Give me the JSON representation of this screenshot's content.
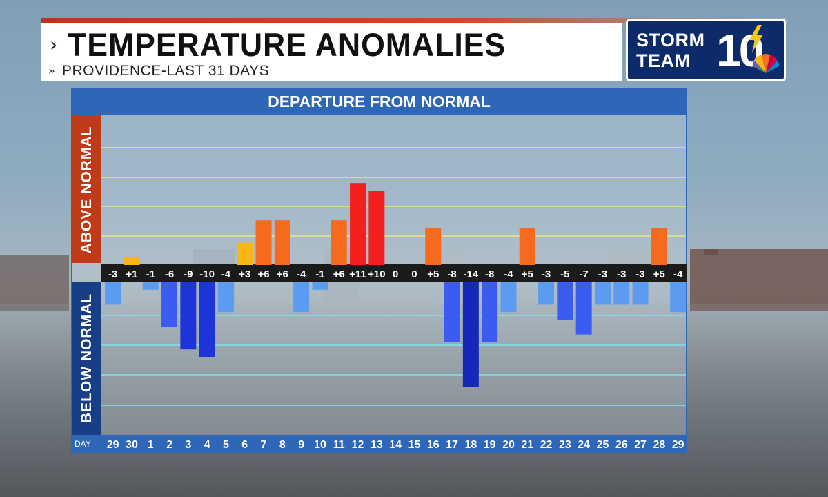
{
  "header": {
    "title": "TEMPERATURE ANOMALIES",
    "subtitle": "PROVIDENCE-LAST 31 DAYS"
  },
  "logo": {
    "line1": "STORM",
    "line2": "TEAM",
    "number": "10"
  },
  "colors": {
    "panel_blue": "#2e67b8",
    "above_side": "#bf3b18",
    "below_side": "#183e86",
    "warm_light": "#f9b516",
    "warm_mid": "#f56a1c",
    "warm_hot": "#f5201e",
    "cool_light": "#5b9cf1",
    "cool_mid": "#3a5cf0",
    "cool_deep": "#1d35d8",
    "cool_deepest": "#1529b8"
  },
  "chart_data": {
    "type": "bar",
    "title": "DEPARTURE FROM NORMAL",
    "above_label": "ABOVE NORMAL",
    "below_label": "BELOW NORMAL",
    "x_caption": "DAY",
    "categories": [
      "29",
      "30",
      "1",
      "2",
      "3",
      "4",
      "5",
      "6",
      "7",
      "8",
      "9",
      "10",
      "11",
      "12",
      "13",
      "14",
      "15",
      "16",
      "17",
      "18",
      "19",
      "20",
      "21",
      "22",
      "23",
      "24",
      "25",
      "26",
      "27",
      "28",
      "29"
    ],
    "values": [
      -3,
      1,
      -1,
      -6,
      -9,
      -10,
      -4,
      3,
      6,
      6,
      -4,
      -1,
      6,
      11,
      10,
      0,
      0,
      5,
      -8,
      -14,
      -8,
      -4,
      5,
      -3,
      -5,
      -7,
      -3,
      -3,
      -3,
      5,
      -4
    ],
    "value_labels": [
      "-3",
      "+1",
      "-1",
      "-6",
      "-9",
      "-10",
      "-4",
      "+3",
      "+6",
      "+6",
      "-4",
      "-1",
      "+6",
      "+11",
      "+10",
      "0",
      "0",
      "+5",
      "-8",
      "-14",
      "-8",
      "-4",
      "+5",
      "-3",
      "-5",
      "-7",
      "-3",
      "-3",
      "-3",
      "+5",
      "-4"
    ],
    "ylim": [
      -15,
      15
    ],
    "grid": true
  }
}
